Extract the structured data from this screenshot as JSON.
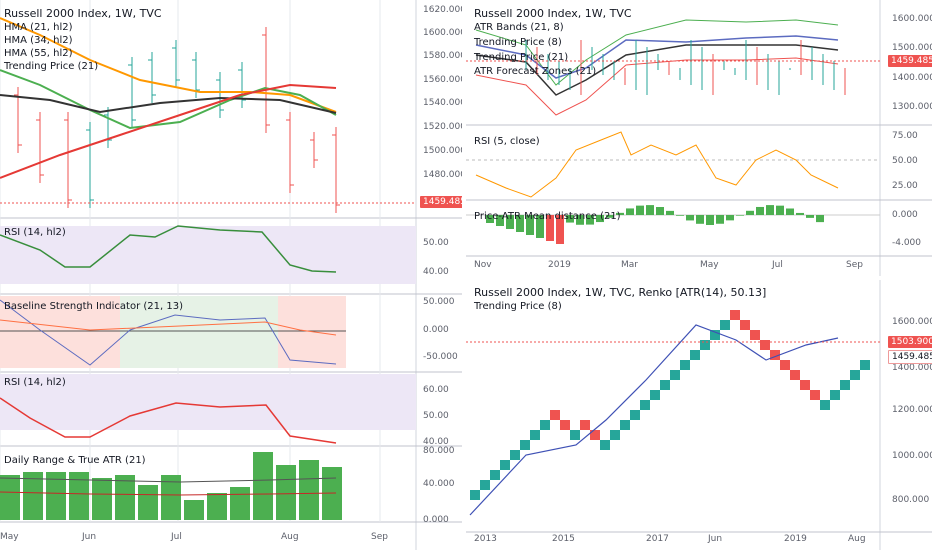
{
  "colors": {
    "up": "#26a69a",
    "down": "#ef5350",
    "green": "#4caf50",
    "purple_band": "#ede7f6",
    "price_tag": "#ef5350",
    "grid": "#e6e8ec"
  },
  "left_chart": {
    "main": {
      "title": "Russell 2000 Index, 1W, TVC",
      "legend": [
        "HMA (21, hl2)",
        "HMA (34, hl2)",
        "HMA (55, hl2)",
        "Trending Price (21)"
      ],
      "yticks": [
        "1620.000",
        "1600.000",
        "1580.000",
        "1560.000",
        "1540.000",
        "1520.000",
        "1500.000",
        "1480.000"
      ],
      "last_price": "1459.485"
    },
    "rsi1": {
      "title": "RSI (14, hl2)",
      "yticks": [
        "50.00",
        "40.00"
      ]
    },
    "baseline": {
      "title": "Baseline Strength Indicator (21, 13)",
      "yticks": [
        "50.000",
        "0.000",
        "-50.000"
      ]
    },
    "rsi2": {
      "title": "RSI (14, hl2)",
      "yticks": [
        "60.00",
        "50.00",
        "40.00"
      ]
    },
    "range": {
      "title": "Daily Range & True ATR (21)",
      "yticks": [
        "80.000",
        "40.000",
        "0.000"
      ]
    },
    "xticks": [
      "May",
      "Jun",
      "Jul",
      "Aug",
      "Sep"
    ]
  },
  "right_top_chart": {
    "main": {
      "title": "Russell 2000 Index, 1W, TVC",
      "legend": [
        "ATR Bands (21, 8)",
        "Trending Price (8)",
        "Trending Price (21)",
        "ATR Forecast Zones (21)"
      ],
      "yticks": [
        "1600.000",
        "1500.000",
        "1400.000",
        "1300.000"
      ],
      "last_price": "1459.485"
    },
    "rsi": {
      "title": "RSI (5, close)",
      "yticks": [
        "75.00",
        "50.00",
        "25.00"
      ]
    },
    "atr_mean": {
      "title": "Price-ATR Mean distance (21)",
      "yticks": [
        "0.000",
        "-4.000"
      ]
    },
    "xticks": [
      "Nov",
      "2019",
      "Mar",
      "May",
      "Jul",
      "Sep"
    ]
  },
  "right_bottom_chart": {
    "title": "Russell 2000 Index, 1W, TVC, Renko [ATR(14), 50.13]",
    "legend": [
      "Trending Price (8)"
    ],
    "yticks": [
      "1600.000",
      "1400.000",
      "1200.000",
      "1000.000",
      "800.000"
    ],
    "price_tags": [
      "1503.900",
      "1459.485"
    ],
    "xticks": [
      "2013",
      "2015",
      "2017",
      "Jun",
      "2019",
      "Aug"
    ]
  }
}
